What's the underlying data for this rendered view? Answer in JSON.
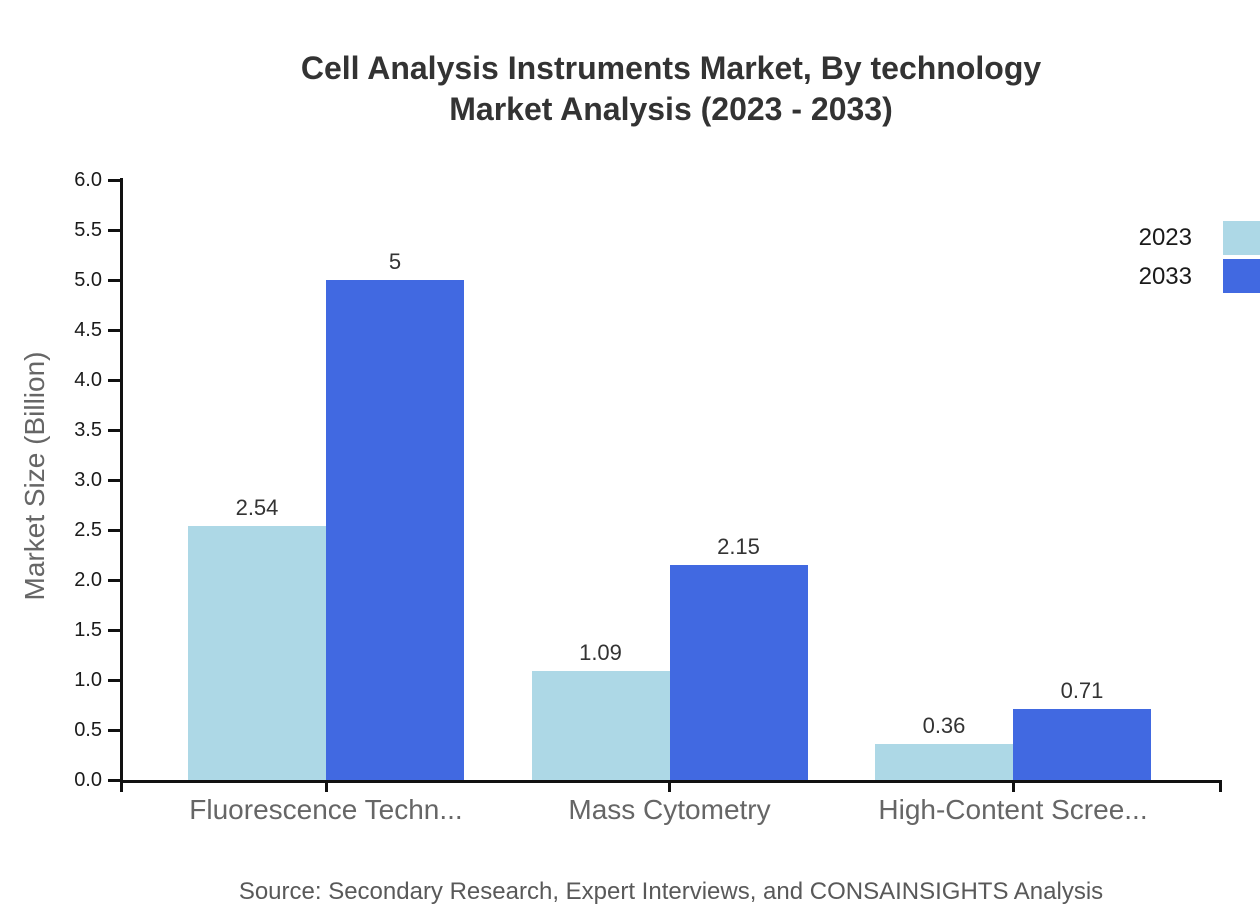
{
  "title": {
    "line1": "Cell Analysis Instruments Market, By technology",
    "line2": "Market Analysis (2023 - 2033)"
  },
  "source": "Source: Secondary Research, Expert Interviews, and CONSAINSIGHTS Analysis",
  "chart_data": {
    "type": "bar",
    "title": "Cell Analysis Instruments Market, By technology Market Analysis (2023 - 2033)",
    "categories": [
      "Fluorescence Techn...",
      "Mass Cytometry",
      "High-Content Scree..."
    ],
    "series": [
      {
        "name": "2023",
        "color": "#ADD8E6",
        "values": [
          2.54,
          1.09,
          0.36
        ]
      },
      {
        "name": "2033",
        "color": "#4169E1",
        "values": [
          5,
          2.15,
          0.71
        ]
      }
    ],
    "xlabel": "",
    "ylabel": "Market Size (Billion)",
    "ylim": [
      0,
      6
    ],
    "ytick_step": 0.5,
    "grid": false,
    "legend_position": "top-right",
    "value_labels": true
  }
}
